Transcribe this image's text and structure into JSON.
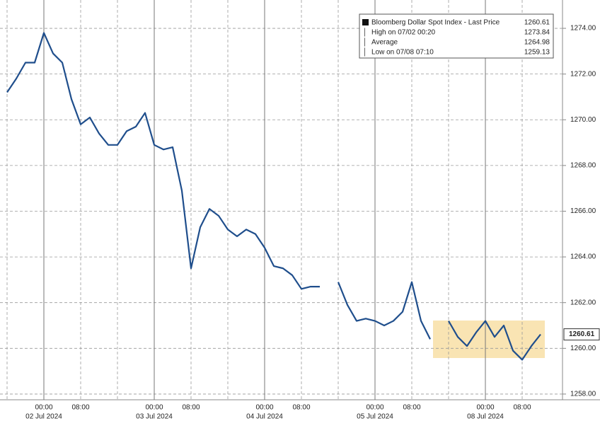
{
  "chart_data": {
    "type": "line",
    "legend": [
      {
        "label": "Bloomberg Dollar Spot Index - Last Price",
        "value": "1260.61"
      },
      {
        "label": "High on 07/02 00:20",
        "value": "1273.84"
      },
      {
        "label": "Average",
        "value": "1264.98"
      },
      {
        "label": "Low on 07/08 07:10",
        "value": "1259.13"
      }
    ],
    "categories": [
      null,
      null,
      null,
      null,
      "00:00",
      null,
      null,
      null,
      "08:00",
      null,
      null,
      null,
      null,
      null,
      null,
      null,
      "00:00",
      null,
      null,
      null,
      "08:00",
      null,
      null,
      null,
      null,
      null,
      null,
      null,
      "00:00",
      null,
      null,
      null,
      "08:00",
      null,
      null,
      null,
      null,
      null,
      null,
      null,
      "00:00",
      null,
      null,
      null,
      "08:00",
      null,
      null,
      null,
      null,
      null,
      null,
      null,
      "00:00",
      null,
      null,
      null,
      "08:00",
      null,
      null
    ],
    "x_dates": [
      null,
      null,
      null,
      null,
      "02 Jul 2024",
      null,
      null,
      null,
      null,
      null,
      null,
      null,
      null,
      null,
      null,
      null,
      "03 Jul 2024",
      null,
      null,
      null,
      null,
      null,
      null,
      null,
      null,
      null,
      null,
      null,
      "04 Jul 2024",
      null,
      null,
      null,
      null,
      null,
      null,
      null,
      null,
      null,
      null,
      null,
      "05 Jul 2024",
      null,
      null,
      null,
      null,
      null,
      null,
      null,
      null,
      null,
      null,
      null,
      "08 Jul 2024",
      null,
      null,
      null,
      null,
      null,
      null
    ],
    "series": [
      {
        "name": "Bloomberg Dollar Spot Index",
        "color": "#1f4e8c",
        "values": [
          1271.2,
          1271.8,
          1272.5,
          1272.5,
          1273.8,
          1272.9,
          1272.5,
          1270.9,
          1269.8,
          1270.1,
          1269.4,
          1268.9,
          1268.9,
          1269.5,
          1269.7,
          1270.3,
          1268.9,
          1268.7,
          1268.8,
          1266.9,
          1263.5,
          1265.3,
          1266.1,
          1265.8,
          1265.2,
          1264.9,
          1265.2,
          1265.0,
          1264.4,
          1263.6,
          1263.5,
          1263.2,
          1262.6,
          1262.7,
          1262.7,
          null,
          1262.9,
          1261.9,
          1261.2,
          1261.3,
          1261.2,
          1261.0,
          1261.2,
          1261.6,
          1262.9,
          1261.2,
          1260.4,
          null,
          1261.2,
          1260.5,
          1260.1,
          1260.7,
          1261.2,
          1260.5,
          1261.0,
          1259.9,
          1259.5,
          1260.1,
          1260.61
        ]
      }
    ],
    "ylim": [
      1257.75,
      1274.93
    ],
    "yticks": [
      {
        "value": 1258,
        "label": "1258.00"
      },
      {
        "value": 1260,
        "label": "1260.00"
      },
      {
        "value": 1262,
        "label": "1262.00"
      },
      {
        "value": 1264,
        "label": "1264.00"
      },
      {
        "value": 1266,
        "label": "1266.00"
      },
      {
        "value": 1268,
        "label": "1268.00"
      },
      {
        "value": 1270,
        "label": "1270.00"
      },
      {
        "value": 1272,
        "label": "1272.00"
      },
      {
        "value": 1274,
        "label": "1274.00"
      }
    ],
    "grid": true
  }
}
